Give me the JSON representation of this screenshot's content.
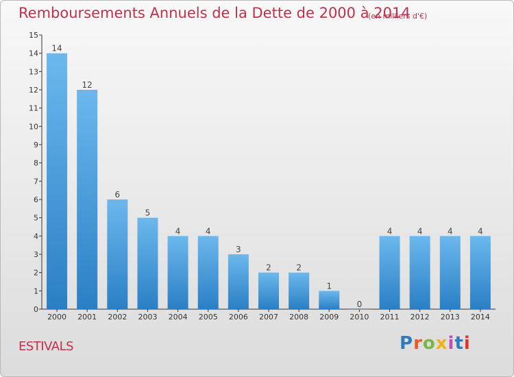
{
  "title": "Remboursements Annuels de la Dette de 2000 à 2014",
  "unit": "(en milliers d'€)",
  "commune": "ESTIVALS",
  "logo": {
    "text": "Proxiti",
    "colors": [
      "#2e7bbf",
      "#e65c24",
      "#7ab648",
      "#f2b215",
      "#b94fb5",
      "#2e7bbf",
      "#e6332a"
    ]
  },
  "colors": {
    "bar_light": "#6cb8ee",
    "bar_dark": "#2a7fc4",
    "title": "#c0304a",
    "axis": "#333333"
  },
  "chart_data": {
    "type": "bar",
    "categories": [
      "2000",
      "2001",
      "2002",
      "2003",
      "2004",
      "2005",
      "2006",
      "2007",
      "2008",
      "2009",
      "2010",
      "2011",
      "2012",
      "2013",
      "2014"
    ],
    "values": [
      14,
      12,
      6,
      5,
      4,
      4,
      3,
      2,
      2,
      1,
      0,
      4,
      4,
      4,
      4
    ],
    "ylim": [
      0,
      15
    ],
    "yticks": [
      0,
      1,
      2,
      3,
      4,
      5,
      6,
      7,
      8,
      9,
      10,
      11,
      12,
      13,
      14,
      15
    ],
    "grid": false,
    "data_labels": true
  }
}
